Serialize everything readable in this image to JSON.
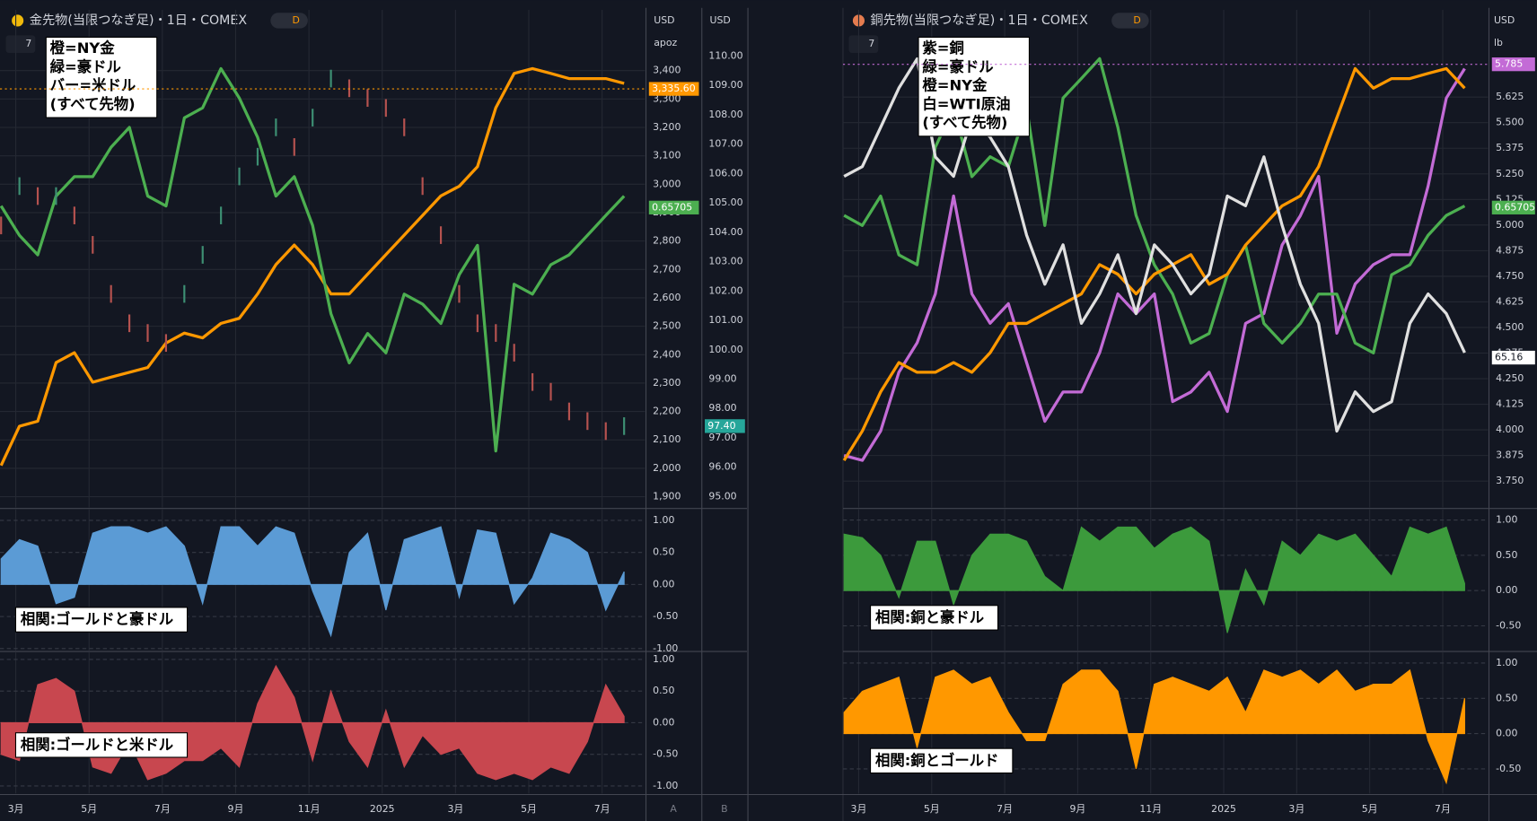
{
  "ui": {
    "titles": [
      "金先物(当限つなぎ足)・1日・COMEX",
      "銅先物(当限つなぎ足)・1日・COMEX"
    ],
    "interval": [
      "D",
      "D"
    ],
    "collapse": [
      "7",
      "7"
    ],
    "axis_headers": [
      "USD",
      "apoz",
      "USD",
      "USD",
      "lb"
    ],
    "scale_buttons": [
      "A",
      "B"
    ]
  },
  "chart_data": [
    {
      "type": "line",
      "legend_note": "(すべて先物)",
      "x": [
        -0.4,
        0.1,
        0.6,
        1.1,
        1.6,
        2.1,
        2.6,
        3.1,
        3.6,
        4.1,
        4.6,
        5.1,
        5.6,
        6.1,
        6.6,
        7.1,
        7.6,
        8.1,
        8.6,
        9.1,
        9.6,
        10.1,
        10.6,
        11.1,
        11.6,
        12.1,
        12.6,
        13.1,
        13.6,
        14.1,
        14.6,
        15.1,
        15.6,
        16.1,
        16.6
      ],
      "xlim": [
        -0.43,
        17.17
      ],
      "xticks": [
        {
          "value": 0,
          "label": "3月"
        },
        {
          "value": 2,
          "label": "5月"
        },
        {
          "value": 4,
          "label": "7月"
        },
        {
          "value": 6,
          "label": "9月"
        },
        {
          "value": 8,
          "label": "11月"
        },
        {
          "value": 10,
          "label": "2025"
        },
        {
          "value": 12,
          "label": "3月"
        },
        {
          "value": 14,
          "label": "5月"
        },
        {
          "value": 16,
          "label": "7月"
        }
      ],
      "ylim": [
        1862,
        3614
      ],
      "yticks": [
        {
          "value": 1900,
          "label": "1,900"
        },
        {
          "value": 2000,
          "label": "2,000"
        },
        {
          "value": 2100,
          "label": "2,100"
        },
        {
          "value": 2200,
          "label": "2,200"
        },
        {
          "value": 2300,
          "label": "2,300"
        },
        {
          "value": 2400,
          "label": "2,400"
        },
        {
          "value": 2500,
          "label": "2,500"
        },
        {
          "value": 2600,
          "label": "2,600"
        },
        {
          "value": 2700,
          "label": "2,700"
        },
        {
          "value": 2800,
          "label": "2,800"
        },
        {
          "value": 2900,
          "label": "2,900"
        },
        {
          "value": 3000,
          "label": "3,000"
        },
        {
          "value": 3100,
          "label": "3,100"
        },
        {
          "value": 3200,
          "label": "3,200"
        },
        {
          "value": 3300,
          "label": "3,300"
        },
        {
          "value": 3400,
          "label": "3,400"
        }
      ],
      "y2lim": [
        94.63,
        111.57
      ],
      "y2ticks": [
        {
          "value": 95,
          "label": "95.00"
        },
        {
          "value": 96,
          "label": "96.00"
        },
        {
          "value": 97,
          "label": "97.00"
        },
        {
          "value": 98,
          "label": "98.00"
        },
        {
          "value": 99,
          "label": "99.00"
        },
        {
          "value": 100,
          "label": "100.00"
        },
        {
          "value": 101,
          "label": "101.00"
        },
        {
          "value": 102,
          "label": "102.00"
        },
        {
          "value": 103,
          "label": "103.00"
        },
        {
          "value": 104,
          "label": "104.00"
        },
        {
          "value": 105,
          "label": "105.00"
        },
        {
          "value": 106,
          "label": "106.00"
        },
        {
          "value": 107,
          "label": "107.00"
        },
        {
          "value": 108,
          "label": "108.00"
        },
        {
          "value": 109,
          "label": "109.00"
        },
        {
          "value": 110,
          "label": "110.00"
        }
      ],
      "grid": true,
      "series": [
        {
          "name": "橙=NY金",
          "color": "#ff9800",
          "axis": "y",
          "values": [
            2010,
            2148,
            2166,
            2372,
            2407,
            2303,
            2321,
            2338,
            2355,
            2441,
            2476,
            2459,
            2510,
            2528,
            2614,
            2717,
            2786,
            2717,
            2614,
            2614,
            2683,
            2752,
            2821,
            2890,
            2959,
            2993,
            3062,
            3269,
            3390,
            3407,
            3390,
            3372,
            3372,
            3372,
            3355
          ]
        },
        {
          "name": "緑=豪ドル",
          "color": "#4caf50",
          "axis": "own",
          "lim": [
            0.5907,
            0.7008
          ],
          "values": [
            0.6574,
            0.6509,
            0.6466,
            0.6596,
            0.6639,
            0.6639,
            0.6704,
            0.6748,
            0.6596,
            0.6574,
            0.6769,
            0.6791,
            0.6878,
            0.6813,
            0.6726,
            0.6596,
            0.6639,
            0.6531,
            0.6336,
            0.6227,
            0.6292,
            0.6249,
            0.6379,
            0.6357,
            0.6314,
            0.6422,
            0.6487,
            0.6032,
            0.6401,
            0.6379,
            0.6444,
            0.6466,
            0.6509,
            0.6553,
            0.6596
          ]
        },
        {
          "name": "バー=米ドル",
          "color": "#b5524f",
          "axis": "y2",
          "style": "bars",
          "values": [
            104.23,
            105.57,
            105.23,
            105.23,
            104.57,
            103.57,
            101.9,
            100.9,
            100.57,
            100.23,
            101.9,
            103.23,
            104.57,
            105.9,
            106.57,
            107.57,
            106.9,
            107.9,
            109.23,
            108.9,
            108.57,
            108.23,
            107.57,
            105.57,
            103.9,
            101.9,
            100.9,
            100.57,
            99.9,
            98.9,
            98.57,
            97.9,
            97.57,
            97.23,
            97.4
          ]
        }
      ],
      "price_labels": [
        {
          "value": 3335.6,
          "label": "3,335.60",
          "axis": "y",
          "color": "#ff9800",
          "dotted": true
        },
        {
          "value": 0.65705,
          "label": "0.65705",
          "axis": "own",
          "series": 1,
          "color": "#4caf50"
        },
        {
          "value": 97.4,
          "label": "97.40",
          "axis": "y2",
          "color": "#26a69a"
        }
      ]
    },
    {
      "type": "area",
      "label": "相関:ゴールドと豪ドル",
      "color": "#5b9bd5",
      "x": [
        -0.4,
        0.1,
        0.6,
        1.1,
        1.6,
        2.1,
        2.6,
        3.1,
        3.6,
        4.1,
        4.6,
        5.1,
        5.6,
        6.1,
        6.6,
        7.1,
        7.6,
        8.1,
        8.6,
        9.1,
        9.6,
        10.1,
        10.6,
        11.1,
        11.6,
        12.1,
        12.6,
        13.1,
        13.6,
        14.1,
        14.6,
        15.1,
        15.6,
        16.1,
        16.6
      ],
      "xlim": [
        -0.43,
        17.17
      ],
      "ylim": [
        -1.03,
        1.17
      ],
      "yticks": [
        {
          "value": 1,
          "label": "1.00"
        },
        {
          "value": 0.5,
          "label": "0.50"
        },
        {
          "value": 0,
          "label": "0.00"
        },
        {
          "value": -0.5,
          "label": "-0.50"
        },
        {
          "value": -1,
          "label": "-1.00"
        }
      ],
      "values": [
        0.4,
        0.7,
        0.6,
        -0.3,
        -0.2,
        0.8,
        0.9,
        0.9,
        0.8,
        0.9,
        0.6,
        -0.3,
        0.9,
        0.9,
        0.6,
        0.9,
        0.8,
        -0.1,
        -0.8,
        0.5,
        0.8,
        -0.4,
        0.7,
        0.8,
        0.9,
        -0.2,
        0.85,
        0.8,
        -0.3,
        0.1,
        0.8,
        0.7,
        0.5,
        -0.4,
        0.2
      ]
    },
    {
      "type": "area",
      "label": "相関:ゴールドと米ドル",
      "color": "#c8474f",
      "x": [
        -0.4,
        0.1,
        0.6,
        1.1,
        1.6,
        2.1,
        2.6,
        3.1,
        3.6,
        4.1,
        4.6,
        5.1,
        5.6,
        6.1,
        6.6,
        7.1,
        7.6,
        8.1,
        8.6,
        9.1,
        9.6,
        10.1,
        10.6,
        11.1,
        11.6,
        12.1,
        12.6,
        13.1,
        13.6,
        14.1,
        14.6,
        15.1,
        15.6,
        16.1,
        16.6
      ],
      "xlim": [
        -0.43,
        17.17
      ],
      "ylim": [
        -1.12,
        1.11
      ],
      "yticks": [
        {
          "value": 1,
          "label": "1.00"
        },
        {
          "value": 0.5,
          "label": "0.50"
        },
        {
          "value": 0,
          "label": "0.00"
        },
        {
          "value": -0.5,
          "label": "-0.50"
        },
        {
          "value": -1,
          "label": "-1.00"
        }
      ],
      "values": [
        -0.5,
        -0.6,
        0.6,
        0.7,
        0.5,
        -0.7,
        -0.8,
        -0.3,
        -0.9,
        -0.8,
        -0.6,
        -0.6,
        -0.4,
        -0.7,
        0.3,
        0.9,
        0.4,
        -0.6,
        0.5,
        -0.3,
        -0.7,
        0.2,
        -0.7,
        -0.2,
        -0.5,
        -0.4,
        -0.8,
        -0.9,
        -0.8,
        -0.9,
        -0.7,
        -0.8,
        -0.3,
        0.6,
        0.1
      ]
    },
    {
      "type": "line",
      "legend_note": "(すべて先物)",
      "x": [
        -0.4,
        0.1,
        0.6,
        1.1,
        1.6,
        2.1,
        2.6,
        3.1,
        3.6,
        4.1,
        4.6,
        5.1,
        5.6,
        6.1,
        6.6,
        7.1,
        7.6,
        8.1,
        8.6,
        9.1,
        9.6,
        10.1,
        10.6,
        11.1,
        11.6,
        12.1,
        12.6,
        13.1,
        13.6,
        14.1,
        14.6,
        15.1,
        15.6,
        16.1,
        16.6
      ],
      "xlim": [
        -0.43,
        17.24
      ],
      "xticks": [
        {
          "value": 0,
          "label": "3月"
        },
        {
          "value": 2,
          "label": "5月"
        },
        {
          "value": 4,
          "label": "7月"
        },
        {
          "value": 6,
          "label": "9月"
        },
        {
          "value": 8,
          "label": "11月"
        },
        {
          "value": 10,
          "label": "2025"
        },
        {
          "value": 12,
          "label": "3月"
        },
        {
          "value": 14,
          "label": "5月"
        },
        {
          "value": 16,
          "label": "7月"
        }
      ],
      "ylim": [
        3.621,
        6.051
      ],
      "yticks": [
        {
          "value": 3.75,
          "label": "3.750"
        },
        3.875,
        {
          "value": 4,
          "label": "4.000"
        },
        4.125,
        {
          "value": 4.25,
          "label": "4.250"
        },
        4.375,
        {
          "value": 4.5,
          "label": "4.500"
        },
        4.625,
        {
          "value": 4.75,
          "label": "4.750"
        },
        4.875,
        {
          "value": 5,
          "label": "5.000"
        },
        5.125,
        {
          "value": 5.25,
          "label": "5.250"
        },
        5.375,
        {
          "value": 5.5,
          "label": "5.500"
        },
        5.625
      ],
      "grid": true,
      "series": [
        {
          "name": "紫=銅",
          "color": "#c36bd6",
          "axis": "y",
          "values": [
            3.875,
            3.851,
            3.994,
            4.281,
            4.425,
            4.664,
            5.142,
            4.664,
            4.521,
            4.616,
            4.329,
            4.042,
            4.185,
            4.185,
            4.377,
            4.664,
            4.568,
            4.664,
            4.138,
            4.185,
            4.281,
            4.09,
            4.52,
            4.568,
            4.903,
            5.046,
            5.238,
            4.472,
            4.712,
            4.807,
            4.855,
            4.855,
            5.19,
            5.62,
            5.764
          ]
        },
        {
          "name": "緑=豪ドル",
          "color": "#4caf50",
          "axis": "own",
          "lim": [
            0.5907,
            0.7008
          ],
          "values": [
            0.6553,
            0.6531,
            0.6596,
            0.6466,
            0.6444,
            0.6704,
            0.6791,
            0.6639,
            0.6683,
            0.6661,
            0.6791,
            0.6531,
            0.6813,
            0.6856,
            0.69,
            0.6748,
            0.6553,
            0.6444,
            0.6379,
            0.6271,
            0.6292,
            0.6422,
            0.6487,
            0.6314,
            0.6271,
            0.6314,
            0.6379,
            0.6379,
            0.6271,
            0.6249,
            0.6422,
            0.6444,
            0.6509,
            0.6553,
            0.6574
          ]
        },
        {
          "name": "橙=NY金",
          "color": "#ff9800",
          "axis": "own",
          "lim": [
            1862,
            3614
          ],
          "values": [
            2028,
            2131,
            2269,
            2372,
            2338,
            2338,
            2372,
            2338,
            2407,
            2510,
            2510,
            2545,
            2579,
            2614,
            2717,
            2683,
            2614,
            2683,
            2717,
            2752,
            2648,
            2683,
            2786,
            2855,
            2924,
            2959,
            3062,
            3234,
            3407,
            3338,
            3372,
            3372,
            3390,
            3407,
            3338
          ]
        },
        {
          "name": "白=WTI原油",
          "color": "#e0e0e0",
          "axis": "own",
          "lim": [
            54.71,
            89.41
          ],
          "values": [
            77.8,
            78.48,
            81.21,
            83.95,
            85.99,
            79.16,
            77.8,
            81.9,
            80.53,
            78.48,
            73.7,
            70.28,
            73.02,
            67.55,
            69.6,
            72.33,
            68.23,
            73.02,
            71.65,
            69.6,
            70.97,
            76.43,
            75.75,
            79.16,
            74.38,
            70.28,
            67.55,
            60.04,
            62.77,
            61.4,
            62.09,
            67.55,
            69.6,
            68.23,
            65.5
          ]
        }
      ],
      "price_labels": [
        {
          "value": 5.785,
          "label": "5.785",
          "axis": "y",
          "color": "#c36bd6",
          "dotted": true
        },
        {
          "value": 0.65705,
          "label": "0.65705",
          "axis": "own",
          "series": 1,
          "color": "#4caf50"
        },
        {
          "value": 65.16,
          "label": "65.16",
          "axis": "own",
          "series": 3,
          "color": "#ffffff"
        }
      ]
    },
    {
      "type": "area",
      "label": "相関:銅と豪ドル",
      "color": "#3c9a3c",
      "x": [
        -0.4,
        0.1,
        0.6,
        1.1,
        1.6,
        2.1,
        2.6,
        3.1,
        3.6,
        4.1,
        4.6,
        5.1,
        5.6,
        6.1,
        6.6,
        7.1,
        7.6,
        8.1,
        8.6,
        9.1,
        9.6,
        10.1,
        10.6,
        11.1,
        11.6,
        12.1,
        12.6,
        13.1,
        13.6,
        14.1,
        14.6,
        15.1,
        15.6,
        16.1,
        16.6
      ],
      "xlim": [
        -0.43,
        17.24
      ],
      "ylim": [
        -0.85,
        1.15
      ],
      "yticks": [
        {
          "value": 1,
          "label": "1.00"
        },
        {
          "value": 0.5,
          "label": "0.50"
        },
        {
          "value": 0,
          "label": "0.00"
        },
        {
          "value": -0.5,
          "label": "-0.50"
        }
      ],
      "values": [
        0.8,
        0.75,
        0.5,
        -0.1,
        0.7,
        0.7,
        -0.2,
        0.5,
        0.8,
        0.8,
        0.7,
        0.2,
        0.0,
        0.9,
        0.7,
        0.9,
        0.9,
        0.6,
        0.8,
        0.9,
        0.7,
        -0.6,
        0.3,
        -0.2,
        0.7,
        0.5,
        0.8,
        0.7,
        0.8,
        0.5,
        0.2,
        0.9,
        0.8,
        0.9,
        0.1
      ]
    },
    {
      "type": "area",
      "label": "相関:銅とゴールド",
      "color": "#ff9800",
      "x": [
        -0.4,
        0.1,
        0.6,
        1.1,
        1.6,
        2.1,
        2.6,
        3.1,
        3.6,
        4.1,
        4.6,
        5.1,
        5.6,
        6.1,
        6.6,
        7.1,
        7.6,
        8.1,
        8.6,
        9.1,
        9.6,
        10.1,
        10.6,
        11.1,
        11.6,
        12.1,
        12.6,
        13.1,
        13.6,
        14.1,
        14.6,
        15.1,
        15.6,
        16.1,
        16.6
      ],
      "xlim": [
        -0.43,
        17.24
      ],
      "ylim": [
        -0.85,
        1.15
      ],
      "yticks": [
        {
          "value": 1,
          "label": "1.00"
        },
        {
          "value": 0.5,
          "label": "0.50"
        },
        {
          "value": 0,
          "label": "0.00"
        },
        {
          "value": -0.5,
          "label": "-0.50"
        }
      ],
      "values": [
        0.3,
        0.6,
        0.7,
        0.8,
        -0.2,
        0.8,
        0.9,
        0.7,
        0.8,
        0.3,
        -0.1,
        -0.1,
        0.7,
        0.9,
        0.9,
        0.6,
        -0.5,
        0.7,
        0.8,
        0.7,
        0.6,
        0.8,
        0.3,
        0.9,
        0.8,
        0.9,
        0.7,
        0.9,
        0.6,
        0.7,
        0.7,
        0.9,
        -0.1,
        -0.7,
        0.5
      ]
    }
  ]
}
